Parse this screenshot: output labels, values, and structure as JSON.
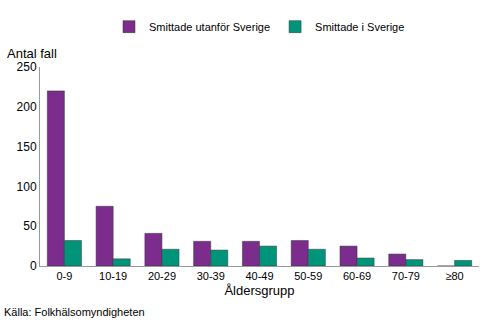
{
  "chart_data": {
    "type": "bar",
    "ylabel": "Antal fall",
    "xlabel": "Åldersgrupp",
    "annotations": [
      "Källa: Folkhälsomyndigheten"
    ],
    "categories": [
      "0-9",
      "10-19",
      "20-29",
      "30-39",
      "40-49",
      "50-59",
      "60-69",
      "70-79",
      "≥80"
    ],
    "series": [
      {
        "name": "Smittade utanför Sverige",
        "color": "#7b2c8c",
        "values": [
          220,
          75,
          41,
          31,
          31,
          32,
          25,
          15,
          0
        ]
      },
      {
        "name": "Smittade i Sverige",
        "color": "#00957a",
        "values": [
          32,
          9,
          21,
          20,
          25,
          21,
          10,
          8,
          7
        ]
      }
    ],
    "ylim": [
      0,
      250
    ],
    "yticks": [
      0,
      50,
      100,
      150,
      200,
      250
    ],
    "grid": false,
    "legend": "top"
  }
}
